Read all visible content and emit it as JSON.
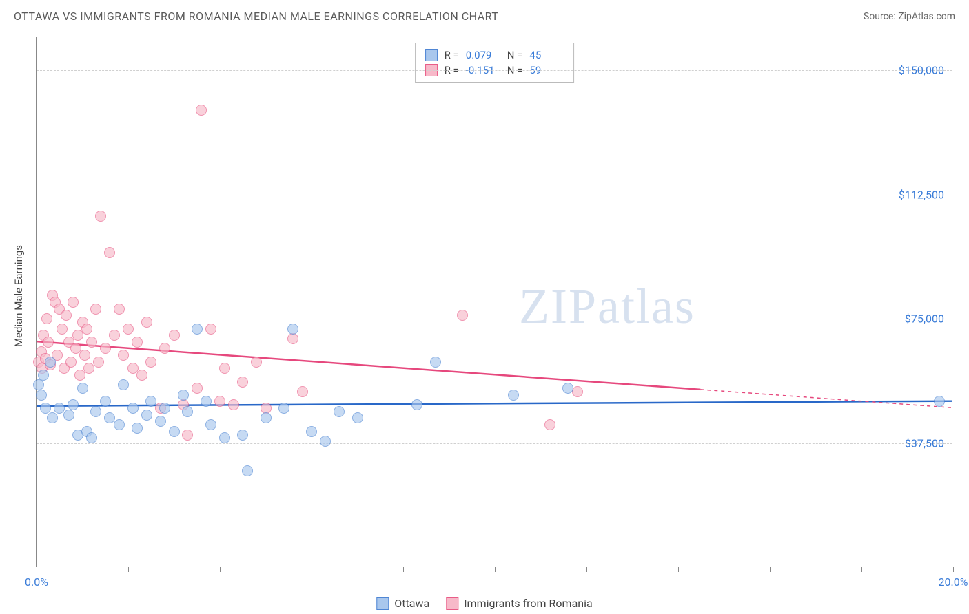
{
  "header": {
    "title": "OTTAWA VS IMMIGRANTS FROM ROMANIA MEDIAN MALE EARNINGS CORRELATION CHART",
    "source": "Source: ZipAtlas.com"
  },
  "chart": {
    "type": "scatter",
    "y_axis_label": "Median Male Earnings",
    "x_min": 0.0,
    "x_max": 20.0,
    "y_min": 0,
    "y_max": 160000,
    "y_ticks": [
      37500,
      75000,
      112500,
      150000
    ],
    "y_tick_labels": [
      "$37,500",
      "$75,000",
      "$112,500",
      "$150,000"
    ],
    "x_ticks": [
      0,
      2.0,
      4.0,
      6.0,
      8.0,
      10.0,
      12.0,
      14.0,
      16.0,
      18.0,
      20.0
    ],
    "x_tick_labels": {
      "0": "0.0%",
      "20": "20.0%"
    },
    "background_color": "#ffffff",
    "grid_color": "#d0d0d0",
    "axis_color": "#888888",
    "tick_label_color": "#3a7cd8",
    "series": [
      {
        "name": "Ottawa",
        "fill": "#a9c7ed",
        "stroke": "#4f86d4",
        "marker_radius": 8,
        "fill_opacity": 0.65,
        "R": "0.079",
        "N": "45",
        "trend": {
          "x1": 0.0,
          "y1": 48500,
          "x2": 20.0,
          "y2": 50000,
          "color": "#2968c8",
          "width": 2.5,
          "dash_after_x": null
        },
        "points": [
          [
            0.05,
            55000
          ],
          [
            0.1,
            52000
          ],
          [
            0.15,
            58000
          ],
          [
            0.2,
            48000
          ],
          [
            0.3,
            62000
          ],
          [
            0.35,
            45000
          ],
          [
            0.5,
            48000
          ],
          [
            0.7,
            46000
          ],
          [
            0.8,
            49000
          ],
          [
            0.9,
            40000
          ],
          [
            1.0,
            54000
          ],
          [
            1.1,
            41000
          ],
          [
            1.2,
            39000
          ],
          [
            1.3,
            47000
          ],
          [
            1.5,
            50000
          ],
          [
            1.6,
            45000
          ],
          [
            1.8,
            43000
          ],
          [
            1.9,
            55000
          ],
          [
            2.1,
            48000
          ],
          [
            2.2,
            42000
          ],
          [
            2.4,
            46000
          ],
          [
            2.5,
            50000
          ],
          [
            2.7,
            44000
          ],
          [
            2.8,
            48000
          ],
          [
            3.0,
            41000
          ],
          [
            3.2,
            52000
          ],
          [
            3.3,
            47000
          ],
          [
            3.5,
            72000
          ],
          [
            3.7,
            50000
          ],
          [
            3.8,
            43000
          ],
          [
            4.1,
            39000
          ],
          [
            4.5,
            40000
          ],
          [
            4.6,
            29000
          ],
          [
            5.0,
            45000
          ],
          [
            5.4,
            48000
          ],
          [
            5.6,
            72000
          ],
          [
            6.0,
            41000
          ],
          [
            6.3,
            38000
          ],
          [
            6.6,
            47000
          ],
          [
            7.0,
            45000
          ],
          [
            8.3,
            49000
          ],
          [
            8.7,
            62000
          ],
          [
            10.4,
            52000
          ],
          [
            11.6,
            54000
          ],
          [
            19.7,
            50000
          ]
        ]
      },
      {
        "name": "Immigrants from Romania",
        "fill": "#f7b9c9",
        "stroke": "#e95c87",
        "marker_radius": 8,
        "fill_opacity": 0.65,
        "R": "-0.151",
        "N": "59",
        "trend": {
          "x1": 0.0,
          "y1": 68000,
          "x2": 20.0,
          "y2": 48000,
          "color": "#e6487d",
          "width": 2.5,
          "dash_after_x": 14.5
        },
        "points": [
          [
            0.05,
            62000
          ],
          [
            0.1,
            65000
          ],
          [
            0.12,
            60000
          ],
          [
            0.15,
            70000
          ],
          [
            0.2,
            63000
          ],
          [
            0.22,
            75000
          ],
          [
            0.25,
            68000
          ],
          [
            0.3,
            61000
          ],
          [
            0.35,
            82000
          ],
          [
            0.4,
            80000
          ],
          [
            0.45,
            64000
          ],
          [
            0.5,
            78000
          ],
          [
            0.55,
            72000
          ],
          [
            0.6,
            60000
          ],
          [
            0.65,
            76000
          ],
          [
            0.7,
            68000
          ],
          [
            0.75,
            62000
          ],
          [
            0.8,
            80000
          ],
          [
            0.85,
            66000
          ],
          [
            0.9,
            70000
          ],
          [
            0.95,
            58000
          ],
          [
            1.0,
            74000
          ],
          [
            1.05,
            64000
          ],
          [
            1.1,
            72000
          ],
          [
            1.15,
            60000
          ],
          [
            1.2,
            68000
          ],
          [
            1.3,
            78000
          ],
          [
            1.35,
            62000
          ],
          [
            1.4,
            106000
          ],
          [
            1.5,
            66000
          ],
          [
            1.6,
            95000
          ],
          [
            1.7,
            70000
          ],
          [
            1.8,
            78000
          ],
          [
            1.9,
            64000
          ],
          [
            2.0,
            72000
          ],
          [
            2.1,
            60000
          ],
          [
            2.2,
            68000
          ],
          [
            2.3,
            58000
          ],
          [
            2.4,
            74000
          ],
          [
            2.5,
            62000
          ],
          [
            2.7,
            48000
          ],
          [
            2.8,
            66000
          ],
          [
            3.0,
            70000
          ],
          [
            3.2,
            49000
          ],
          [
            3.3,
            40000
          ],
          [
            3.5,
            54000
          ],
          [
            3.6,
            138000
          ],
          [
            3.8,
            72000
          ],
          [
            4.0,
            50000
          ],
          [
            4.1,
            60000
          ],
          [
            4.3,
            49000
          ],
          [
            4.5,
            56000
          ],
          [
            4.8,
            62000
          ],
          [
            5.0,
            48000
          ],
          [
            5.6,
            69000
          ],
          [
            5.8,
            53000
          ],
          [
            9.3,
            76000
          ],
          [
            11.2,
            43000
          ],
          [
            11.8,
            53000
          ]
        ]
      }
    ],
    "legend": {
      "items": [
        {
          "label": "Ottawa",
          "fill": "#a9c7ed",
          "stroke": "#4f86d4"
        },
        {
          "label": "Immigrants from Romania",
          "fill": "#f7b9c9",
          "stroke": "#e95c87"
        }
      ]
    },
    "watermark": {
      "text1": "ZIP",
      "text2": "atlas"
    }
  }
}
